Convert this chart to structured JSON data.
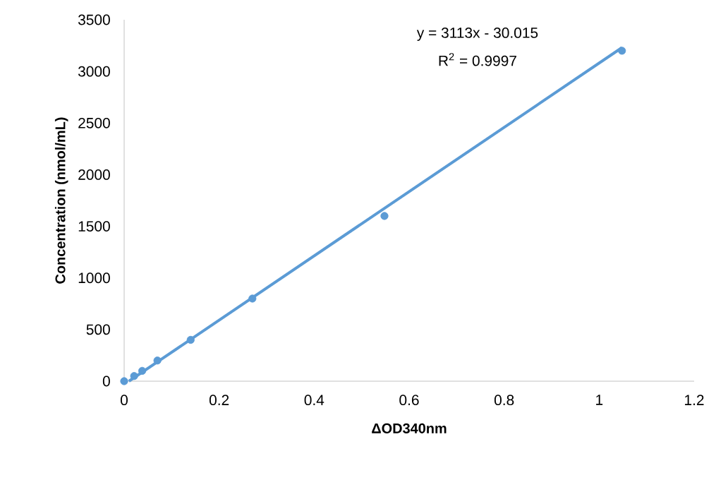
{
  "chart_data": {
    "type": "scatter",
    "xlabel": "ΔOD340nm",
    "ylabel": "Concentration (nmol/mL)",
    "annotations": [
      "y = 3113x - 30.015",
      "R$^{2}$ = 0.9997"
    ],
    "series": [
      {
        "color": "#5b9bd5",
        "marker": "circle",
        "x": [
          0,
          0.021,
          0.038,
          0.07,
          0.14,
          0.27,
          0.548,
          1.048
        ],
        "values": [
          0,
          50,
          100,
          200,
          400,
          800,
          1600,
          3200
        ]
      },
      {
        "type": "line",
        "color": "#5b9bd5",
        "marker": "none",
        "x": [
          0.01,
          1.048
        ],
        "values": [
          0,
          3230
        ]
      }
    ],
    "xlim": [
      0,
      1.2
    ],
    "xticks": [
      0,
      0.2,
      0.4,
      0.6,
      0.8,
      1,
      1.2
    ],
    "ylim": [
      0,
      3500
    ],
    "yticks": [
      0,
      500,
      1000,
      1500,
      2000,
      2500,
      3000,
      3500
    ],
    "grid": false
  }
}
